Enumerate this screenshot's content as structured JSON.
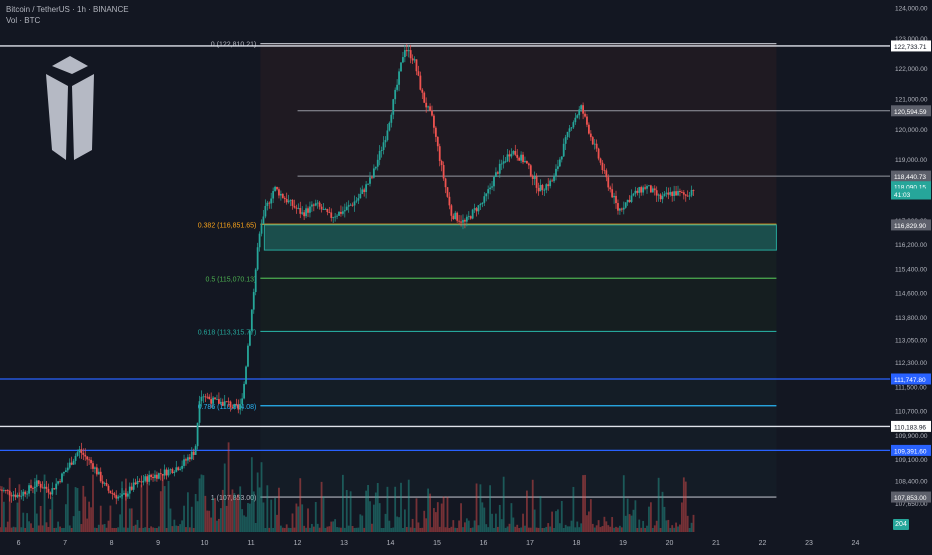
{
  "header": {
    "symbol_line": "Bitcoin / TetherUS · 1h · BINANCE",
    "volume_line": "Vol · BTC"
  },
  "colors": {
    "background": "#131722",
    "up": "#26a69a",
    "down": "#ef5350",
    "fib_0": "#b2b5be",
    "fib_0382": "#f7a21b",
    "fib_05": "#4caf50",
    "fib_0618": "#26a69a",
    "fib_0786": "#29b6f6",
    "support_zone": "#26a69a",
    "blue_level": "#2962ff"
  },
  "chart_data": {
    "type": "candlestick",
    "title": "Bitcoin / TetherUS · 1h · BINANCE",
    "x_axis": {
      "label": "",
      "ticks": [
        "6",
        "7",
        "8",
        "9",
        "10",
        "11",
        "12",
        "13",
        "14",
        "15",
        "16",
        "17",
        "18",
        "19",
        "20",
        "21",
        "22",
        "23",
        "24"
      ],
      "range": [
        5.6,
        24.7
      ]
    },
    "y_axis": {
      "label": "",
      "ticks": [
        124000,
        123000,
        122000,
        121000,
        120000,
        119000,
        118000,
        117000,
        116200,
        115400,
        114600,
        113800,
        113050,
        112300,
        111500,
        110700,
        109900,
        109100,
        108400,
        107650
      ],
      "tick_labels": [
        "124,000.00",
        "123,000.00",
        "122,000.00",
        "121,000.00",
        "120,000.00",
        "119,000.00",
        "118,000.00",
        "117,000.00",
        "116,200.00",
        "115,400.00",
        "114,600.00",
        "113,800.00",
        "113,050.00",
        "112,300.00",
        "111,500.00",
        "110,700.00",
        "109,900.00",
        "109,100.00",
        "108,400.00",
        "107,650.00"
      ],
      "range": [
        106700,
        124250
      ]
    },
    "grid": false,
    "price_path": [
      [
        5.6,
        108100
      ],
      [
        6.0,
        107900
      ],
      [
        6.4,
        108300
      ],
      [
        6.7,
        108050
      ],
      [
        7.0,
        108700
      ],
      [
        7.3,
        109400
      ],
      [
        7.6,
        108900
      ],
      [
        7.9,
        108100
      ],
      [
        8.2,
        107800
      ],
      [
        8.5,
        108250
      ],
      [
        8.8,
        108500
      ],
      [
        9.2,
        108700
      ],
      [
        9.5,
        108900
      ],
      [
        9.8,
        109400
      ],
      [
        9.9,
        111300
      ],
      [
        10.2,
        111000
      ],
      [
        10.5,
        110950
      ],
      [
        10.75,
        110700
      ],
      [
        10.85,
        111600
      ],
      [
        10.95,
        113100
      ],
      [
        11.05,
        114500
      ],
      [
        11.15,
        116200
      ],
      [
        11.3,
        117300
      ],
      [
        11.5,
        118050
      ],
      [
        11.8,
        117600
      ],
      [
        12.1,
        117200
      ],
      [
        12.4,
        117500
      ],
      [
        12.7,
        117100
      ],
      [
        13.0,
        117300
      ],
      [
        13.3,
        117700
      ],
      [
        13.6,
        118400
      ],
      [
        13.9,
        119800
      ],
      [
        14.15,
        121500
      ],
      [
        14.3,
        122700
      ],
      [
        14.5,
        122300
      ],
      [
        14.7,
        121000
      ],
      [
        14.9,
        120300
      ],
      [
        15.1,
        118700
      ],
      [
        15.3,
        117200
      ],
      [
        15.6,
        116900
      ],
      [
        15.8,
        117300
      ],
      [
        16.0,
        117600
      ],
      [
        16.3,
        118600
      ],
      [
        16.6,
        119300
      ],
      [
        16.9,
        118900
      ],
      [
        17.2,
        118000
      ],
      [
        17.5,
        118300
      ],
      [
        17.7,
        119300
      ],
      [
        17.9,
        120200
      ],
      [
        18.1,
        120700
      ],
      [
        18.3,
        119800
      ],
      [
        18.6,
        118500
      ],
      [
        18.9,
        117300
      ],
      [
        19.2,
        117800
      ],
      [
        19.5,
        118100
      ],
      [
        19.8,
        117700
      ],
      [
        20.1,
        117900
      ],
      [
        20.35,
        117800
      ],
      [
        20.55,
        118090
      ]
    ],
    "volume_series_note_free": true,
    "fib_levels": [
      {
        "label": "0 (122,810.21)",
        "price": 122810
      },
      {
        "label": "0.382 (116,851.65)",
        "price": 116852
      },
      {
        "label": "0.5 (115,070.13)",
        "price": 115070
      },
      {
        "label": "0.618 (113,315.77)",
        "price": 113316
      },
      {
        "label": "0.786 (110,864.08)",
        "price": 110864
      },
      {
        "label": "1 (107,853.00)",
        "price": 107853
      }
    ],
    "levels": [
      {
        "label": "122,733.71",
        "price": 122734,
        "style": "white-line"
      },
      {
        "label": "120,594.59",
        "price": 120595,
        "style": "gray"
      },
      {
        "label": "118,440.73",
        "price": 118441,
        "style": "gray"
      },
      {
        "label": "118,090.15",
        "price": 118090,
        "style": "last"
      },
      {
        "label": "41:03",
        "price": 117850,
        "style": "countdown"
      },
      {
        "label": "116,829.90",
        "price": 116830,
        "style": "gray"
      },
      {
        "label": "111,747.80",
        "price": 111748,
        "style": "blue"
      },
      {
        "label": "110,183.96",
        "price": 110184,
        "style": "white-line"
      },
      {
        "label": "109,391.60",
        "price": 109392,
        "style": "blue"
      },
      {
        "label": "107,853.00",
        "price": 107853,
        "style": "gray"
      }
    ],
    "support_zone": {
      "from": 116000,
      "to": 116830,
      "x_start": 11.2,
      "x_end": 22.3
    },
    "last_price": 118090.15,
    "volume_badge": "204"
  }
}
